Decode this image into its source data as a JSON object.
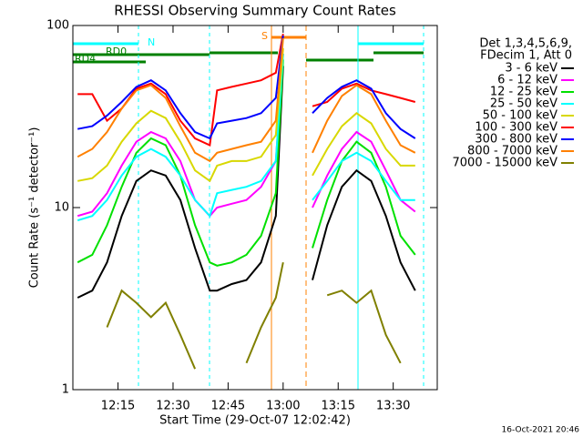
{
  "chart_data": {
    "type": "line",
    "title": "RHESSI Observing Summary Count Rates",
    "x_label": "Start Time (29-Oct-07 12:02:42)",
    "y_label": "Count Rate (s⁻¹ detector⁻¹)",
    "legend_header": [
      "Det 1,3,4,5,6,9,",
      "FDecim 1, Att 0"
    ],
    "annotations": [
      "N",
      "S",
      "RD0",
      "RD4"
    ],
    "footer": "16-Oct-2021 20:46",
    "y_log": true,
    "legend_position": "right",
    "xlim": [
      722.7,
      822
    ],
    "ylim": [
      1,
      100
    ],
    "yticks": [
      1,
      10,
      100
    ],
    "xticks": [
      {
        "value": 735,
        "label": "12:15"
      },
      {
        "value": 750,
        "label": "12:30"
      },
      {
        "value": 765,
        "label": "12:45"
      },
      {
        "value": 780,
        "label": "13:00"
      },
      {
        "value": 795,
        "label": "13:15"
      },
      {
        "value": 810,
        "label": "13:30"
      }
    ],
    "x": [
      724,
      728,
      732,
      736,
      740,
      744,
      748,
      752,
      756,
      760,
      762,
      766,
      770,
      774,
      778,
      780,
      784,
      788,
      792,
      796,
      800,
      804,
      808,
      812,
      816
    ],
    "series": [
      {
        "name": "3 - 6 keV",
        "color": "#000000",
        "values": [
          3.2,
          3.5,
          5,
          9,
          14,
          16,
          15,
          11,
          6,
          3.5,
          3.5,
          3.8,
          4,
          5,
          9,
          60,
          null,
          4,
          8,
          13,
          16,
          14,
          9,
          5,
          3.5
        ]
      },
      {
        "name": "6 - 12 keV",
        "color": "#ff00ff",
        "values": [
          9,
          9.5,
          12,
          17,
          23,
          26,
          24,
          18,
          11,
          9,
          10,
          10.5,
          11,
          13,
          18,
          70,
          null,
          10,
          15,
          21,
          26,
          23,
          16,
          11,
          9.5
        ]
      },
      {
        "name": "12 - 25 keV",
        "color": "#00e000",
        "values": [
          5,
          5.5,
          8,
          13,
          20,
          24,
          22,
          15,
          8,
          5,
          4.8,
          5,
          5.5,
          7,
          12,
          65,
          null,
          6,
          11,
          18,
          23,
          20,
          13,
          7,
          5.5
        ]
      },
      {
        "name": "25 - 50 keV",
        "color": "#00ffff",
        "values": [
          8.5,
          9,
          11,
          15,
          19,
          21,
          19,
          15,
          11,
          9,
          12,
          12.5,
          13,
          14,
          18,
          70,
          null,
          11,
          14,
          18,
          20,
          18,
          14,
          11,
          11
        ]
      },
      {
        "name": "50 - 100 keV",
        "color": "#d8d800",
        "values": [
          14,
          14.5,
          17,
          23,
          29,
          34,
          31,
          23,
          16,
          14,
          17,
          18,
          18,
          19,
          25,
          75,
          null,
          15,
          21,
          28,
          33,
          29,
          21,
          17,
          17
        ]
      },
      {
        "name": "100 - 300 keV",
        "color": "#ff0000",
        "values": [
          42,
          42,
          30,
          35,
          45,
          48,
          42,
          30,
          24,
          22,
          44,
          46,
          48,
          50,
          55,
          90,
          null,
          36,
          38,
          45,
          48,
          44,
          42,
          40,
          38
        ]
      },
      {
        "name": "300 - 800 keV",
        "color": "#0000ff",
        "values": [
          27,
          28,
          32,
          38,
          46,
          50,
          44,
          33,
          26,
          24,
          29,
          30,
          31,
          33,
          40,
          88,
          null,
          33,
          40,
          46,
          50,
          45,
          33,
          27,
          24
        ]
      },
      {
        "name": "800 - 7000 keV",
        "color": "#ff8000",
        "values": [
          19,
          21,
          26,
          35,
          44,
          47,
          40,
          28,
          20,
          18,
          20,
          21,
          22,
          23,
          30,
          85,
          null,
          20,
          30,
          41,
          47,
          42,
          30,
          22,
          20
        ]
      },
      {
        "name": "7000 - 15000 keV",
        "color": "#808000",
        "values": [
          null,
          null,
          2.2,
          3.5,
          3,
          2.5,
          3,
          2,
          1.3,
          null,
          null,
          null,
          1.4,
          2.2,
          3.2,
          5,
          null,
          null,
          3.3,
          3.5,
          3,
          3.5,
          2,
          1.4,
          null
        ]
      }
    ]
  }
}
